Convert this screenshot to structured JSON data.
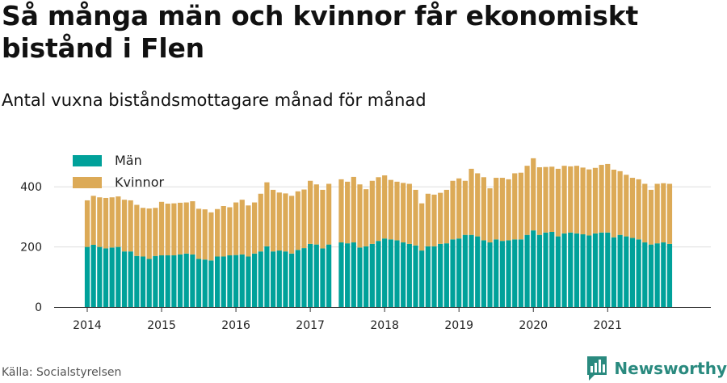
{
  "title": "Så många män och kvinnor får ekonomiskt bistånd i Flen",
  "subtitle": "Antal vuxna biståndsmottagare månad för månad",
  "source": "Källa: Socialstyrelsen",
  "brand": "Newsworthy",
  "colors": {
    "man": "#00a19a",
    "kvinnor": "#dcaa57",
    "grid": "#dddddd",
    "axis": "#333333",
    "brand": "#2a8a7f"
  },
  "chart_data": {
    "type": "bar",
    "stacked": true,
    "x_unit": "month",
    "x_start": "2014-01",
    "x_end": "2021-12",
    "x_ticks": [
      "2014",
      "2015",
      "2016",
      "2017",
      "2018",
      "2019",
      "2020",
      "2021"
    ],
    "ylim": [
      0,
      500
    ],
    "y_ticks": [
      0,
      200,
      400
    ],
    "grid": true,
    "legend_position": "top-left",
    "series": [
      {
        "name": "Män",
        "color": "#00a19a",
        "values": [
          200,
          207,
          200,
          195,
          198,
          200,
          185,
          185,
          170,
          168,
          160,
          170,
          172,
          172,
          172,
          175,
          178,
          175,
          160,
          158,
          155,
          168,
          168,
          172,
          173,
          175,
          168,
          178,
          185,
          202,
          185,
          188,
          185,
          178,
          190,
          196,
          210,
          208,
          195,
          208,
          null,
          215,
          212,
          215,
          198,
          202,
          210,
          220,
          228,
          225,
          222,
          215,
          210,
          205,
          188,
          202,
          202,
          210,
          212,
          225,
          228,
          240,
          240,
          235,
          222,
          215,
          225,
          220,
          222,
          225,
          225,
          240,
          255,
          240,
          248,
          250,
          235,
          245,
          248,
          245,
          242,
          238,
          245,
          248,
          248,
          232,
          240,
          235,
          230,
          225,
          215,
          208,
          212,
          215,
          210
        ]
      },
      {
        "name": "Kvinnor",
        "color": "#dcaa57",
        "values": [
          155,
          163,
          165,
          168,
          167,
          168,
          172,
          170,
          170,
          162,
          168,
          160,
          178,
          172,
          173,
          172,
          170,
          177,
          167,
          167,
          160,
          158,
          168,
          160,
          175,
          182,
          170,
          170,
          192,
          213,
          205,
          193,
          193,
          192,
          195,
          195,
          210,
          200,
          195,
          202,
          null,
          210,
          205,
          218,
          210,
          190,
          210,
          212,
          210,
          198,
          195,
          198,
          200,
          185,
          157,
          175,
          172,
          170,
          178,
          195,
          200,
          180,
          220,
          210,
          210,
          180,
          205,
          210,
          203,
          220,
          222,
          230,
          240,
          225,
          218,
          217,
          225,
          225,
          220,
          225,
          222,
          220,
          218,
          225,
          228,
          225,
          212,
          205,
          200,
          200,
          195,
          182,
          198,
          197,
          200
        ]
      }
    ]
  }
}
